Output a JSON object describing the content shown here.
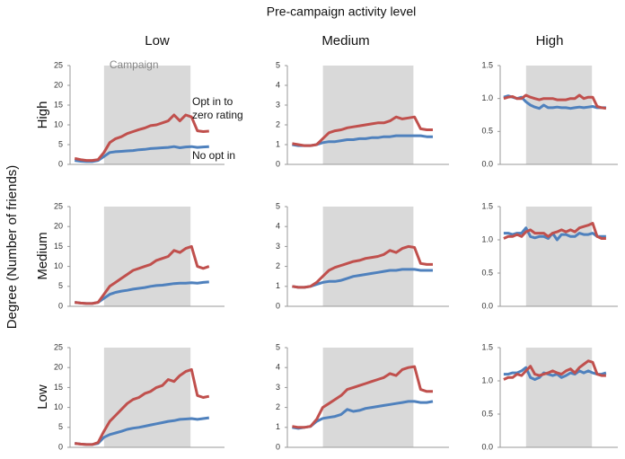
{
  "figure": {
    "title": "Pre-campaign activity level",
    "ylabel": "Degree (Number of friends)",
    "column_labels": [
      "Low",
      "Medium",
      "High"
    ],
    "row_labels": [
      "High",
      "Medium",
      "Low"
    ]
  },
  "chart_data": [
    {
      "type": "line",
      "shade_label": "Campaign",
      "ylim": [
        0,
        25
      ],
      "yticks": [
        0,
        5,
        10,
        15,
        20,
        25
      ],
      "series": [
        {
          "name": "Opt in to zero rating",
          "color": "#c0504d",
          "values": [
            1.5,
            1.2,
            1,
            1,
            1.2,
            3,
            5.5,
            6.5,
            7,
            7.8,
            8.3,
            8.8,
            9.2,
            9.8,
            10,
            10.5,
            11,
            12.5,
            11,
            12.5,
            12,
            8.5,
            8.3,
            8.4
          ]
        },
        {
          "name": "No opt in",
          "color": "#4f81bd",
          "values": [
            1,
            0.8,
            0.7,
            0.7,
            1,
            2,
            3,
            3.2,
            3.3,
            3.4,
            3.5,
            3.7,
            3.8,
            4,
            4.1,
            4.2,
            4.3,
            4.5,
            4.2,
            4.4,
            4.5,
            4.3,
            4.4,
            4.5
          ]
        }
      ]
    },
    {
      "type": "line",
      "ylim": [
        0,
        5
      ],
      "yticks": [
        0,
        1,
        2,
        3,
        4,
        5
      ],
      "series": [
        {
          "color": "#c0504d",
          "values": [
            1.05,
            1,
            0.95,
            0.95,
            1,
            1.3,
            1.6,
            1.7,
            1.75,
            1.85,
            1.9,
            1.95,
            2,
            2.05,
            2.1,
            2.1,
            2.2,
            2.4,
            2.3,
            2.35,
            2.4,
            1.8,
            1.75,
            1.75
          ]
        },
        {
          "color": "#4f81bd",
          "values": [
            1,
            0.95,
            0.95,
            0.95,
            1,
            1.1,
            1.15,
            1.15,
            1.2,
            1.25,
            1.25,
            1.3,
            1.3,
            1.35,
            1.35,
            1.4,
            1.4,
            1.45,
            1.45,
            1.45,
            1.45,
            1.45,
            1.4,
            1.4
          ]
        }
      ]
    },
    {
      "type": "line",
      "ylim": [
        0,
        1.5
      ],
      "yticks": [
        {
          "value": 0,
          "label": "0.0"
        },
        0.5,
        {
          "value": 1,
          "label": "1.0"
        },
        1.5
      ],
      "series": [
        {
          "color": "#c0504d",
          "values": [
            1,
            1.02,
            1.03,
            1.0,
            1.0,
            1.05,
            1.02,
            1.0,
            0.98,
            1.0,
            1.0,
            1.0,
            0.98,
            0.98,
            0.98,
            1.0,
            1.0,
            1.05,
            1.0,
            1.02,
            1.02,
            0.88,
            0.86,
            0.85
          ]
        },
        {
          "color": "#4f81bd",
          "values": [
            1.02,
            1.04,
            1.02,
            1.0,
            1.02,
            0.95,
            0.9,
            0.87,
            0.85,
            0.9,
            0.86,
            0.86,
            0.87,
            0.86,
            0.86,
            0.85,
            0.86,
            0.87,
            0.86,
            0.87,
            0.88,
            0.86,
            0.86,
            0.86
          ]
        }
      ]
    },
    {
      "type": "line",
      "ylim": [
        0,
        25
      ],
      "yticks": [
        0,
        5,
        10,
        15,
        20,
        25
      ],
      "series": [
        {
          "color": "#c0504d",
          "values": [
            1,
            0.8,
            0.7,
            0.7,
            1,
            3,
            5,
            6,
            7,
            8,
            9,
            9.5,
            10,
            10.5,
            11.5,
            12,
            12.5,
            14,
            13.5,
            14.5,
            15,
            10,
            9.5,
            10
          ]
        },
        {
          "color": "#4f81bd",
          "values": [
            1,
            0.8,
            0.7,
            0.7,
            1,
            2,
            3,
            3.5,
            3.8,
            4,
            4.3,
            4.5,
            4.7,
            5,
            5.2,
            5.3,
            5.5,
            5.7,
            5.8,
            5.8,
            5.9,
            5.8,
            6,
            6.1
          ]
        }
      ]
    },
    {
      "type": "line",
      "ylim": [
        0,
        5
      ],
      "yticks": [
        0,
        1,
        2,
        3,
        4,
        5
      ],
      "series": [
        {
          "color": "#c0504d",
          "values": [
            1,
            0.95,
            0.95,
            1,
            1.2,
            1.5,
            1.8,
            1.95,
            2.05,
            2.15,
            2.25,
            2.3,
            2.4,
            2.45,
            2.5,
            2.6,
            2.8,
            2.7,
            2.9,
            3,
            2.95,
            2.15,
            2.1,
            2.1
          ]
        },
        {
          "color": "#4f81bd",
          "values": [
            1,
            0.95,
            0.95,
            1,
            1.1,
            1.2,
            1.25,
            1.25,
            1.3,
            1.4,
            1.5,
            1.55,
            1.6,
            1.65,
            1.7,
            1.75,
            1.8,
            1.8,
            1.85,
            1.85,
            1.85,
            1.8,
            1.8,
            1.8
          ]
        }
      ]
    },
    {
      "type": "line",
      "ylim": [
        0,
        1.5
      ],
      "yticks": [
        {
          "value": 0,
          "label": "0.0"
        },
        0.5,
        {
          "value": 1,
          "label": "1.0"
        },
        1.5
      ],
      "series": [
        {
          "color": "#c0504d",
          "values": [
            1.02,
            1.05,
            1.05,
            1.08,
            1.05,
            1.12,
            1.15,
            1.1,
            1.1,
            1.1,
            1.05,
            1.1,
            1.12,
            1.15,
            1.12,
            1.15,
            1.12,
            1.18,
            1.2,
            1.22,
            1.25,
            1.05,
            1.02,
            1.02
          ]
        },
        {
          "color": "#4f81bd",
          "values": [
            1.1,
            1.1,
            1.08,
            1.1,
            1.1,
            1.18,
            1.05,
            1.03,
            1.05,
            1.05,
            1.02,
            1.1,
            1.0,
            1.08,
            1.08,
            1.05,
            1.05,
            1.1,
            1.08,
            1.08,
            1.1,
            1.05,
            1.05,
            1.05
          ]
        }
      ]
    },
    {
      "type": "line",
      "ylim": [
        0,
        25
      ],
      "yticks": [
        0,
        5,
        10,
        15,
        20,
        25
      ],
      "series": [
        {
          "color": "#c0504d",
          "values": [
            1,
            0.8,
            0.7,
            0.7,
            1.2,
            4,
            6.5,
            8,
            9.5,
            11,
            12,
            12.5,
            13.5,
            14,
            15,
            15.5,
            17,
            16.5,
            18,
            19,
            19.5,
            13,
            12.5,
            12.8
          ]
        },
        {
          "color": "#4f81bd",
          "values": [
            1,
            0.8,
            0.7,
            0.7,
            1,
            2.5,
            3.2,
            3.6,
            4,
            4.5,
            4.8,
            5,
            5.3,
            5.6,
            5.9,
            6.2,
            6.5,
            6.7,
            7,
            7.1,
            7.2,
            7,
            7.2,
            7.4
          ]
        }
      ]
    },
    {
      "type": "line",
      "ylim": [
        0,
        5
      ],
      "yticks": [
        0,
        1,
        2,
        3,
        4,
        5
      ],
      "series": [
        {
          "color": "#c0504d",
          "values": [
            1.05,
            1,
            1,
            1.05,
            1.4,
            2,
            2.2,
            2.4,
            2.6,
            2.9,
            3.0,
            3.1,
            3.2,
            3.3,
            3.4,
            3.5,
            3.7,
            3.6,
            3.9,
            4,
            4.05,
            2.9,
            2.8,
            2.8
          ]
        },
        {
          "color": "#4f81bd",
          "values": [
            1,
            0.95,
            1,
            1.05,
            1.3,
            1.45,
            1.5,
            1.55,
            1.65,
            1.9,
            1.8,
            1.85,
            1.95,
            2,
            2.05,
            2.1,
            2.15,
            2.2,
            2.25,
            2.3,
            2.3,
            2.25,
            2.25,
            2.3
          ]
        }
      ]
    },
    {
      "type": "line",
      "ylim": [
        0,
        1.5
      ],
      "yticks": [
        {
          "value": 0,
          "label": "0.0"
        },
        0.5,
        {
          "value": 1,
          "label": "1.0"
        },
        1.5
      ],
      "series": [
        {
          "color": "#c0504d",
          "values": [
            1.02,
            1.05,
            1.05,
            1.1,
            1.08,
            1.15,
            1.22,
            1.1,
            1.08,
            1.1,
            1.12,
            1.15,
            1.12,
            1.1,
            1.15,
            1.18,
            1.12,
            1.2,
            1.25,
            1.3,
            1.28,
            1.1,
            1.08,
            1.08
          ]
        },
        {
          "color": "#4f81bd",
          "values": [
            1.1,
            1.1,
            1.12,
            1.12,
            1.15,
            1.2,
            1.05,
            1.02,
            1.05,
            1.12,
            1.1,
            1.08,
            1.1,
            1.05,
            1.08,
            1.12,
            1.1,
            1.15,
            1.12,
            1.15,
            1.12,
            1.1,
            1.1,
            1.12
          ]
        }
      ]
    }
  ]
}
